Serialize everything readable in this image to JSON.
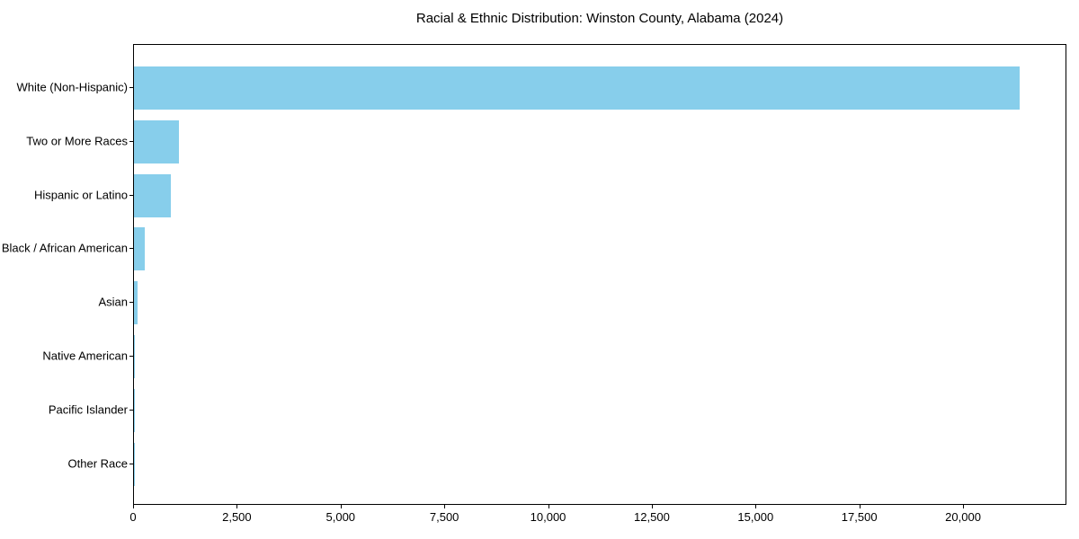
{
  "chart_data": {
    "type": "bar",
    "orientation": "horizontal",
    "title": "Racial & Ethnic Distribution: Winston County, Alabama (2024)",
    "categories": [
      "White (Non-Hispanic)",
      "Two or More Races",
      "Hispanic or Latino",
      "Black / African American",
      "Asian",
      "Native American",
      "Pacific Islander",
      "Other Race"
    ],
    "values": [
      21390,
      1080,
      880,
      270,
      95,
      20,
      10,
      5
    ],
    "xlabel": "",
    "ylabel": "",
    "xlim": [
      0,
      22490
    ],
    "xticks": [
      {
        "value": 0,
        "label": "0"
      },
      {
        "value": 2500,
        "label": "2,500"
      },
      {
        "value": 5000,
        "label": "5,000"
      },
      {
        "value": 7500,
        "label": "7,500"
      },
      {
        "value": 10000,
        "label": "10,000"
      },
      {
        "value": 12500,
        "label": "12,500"
      },
      {
        "value": 15000,
        "label": "15,000"
      },
      {
        "value": 17500,
        "label": "17,500"
      },
      {
        "value": 20000,
        "label": "20,000"
      }
    ],
    "bar_color": "#87CEEB",
    "axis_color": "#000000",
    "background_color": "#ffffff",
    "grid": false,
    "legend": null
  }
}
